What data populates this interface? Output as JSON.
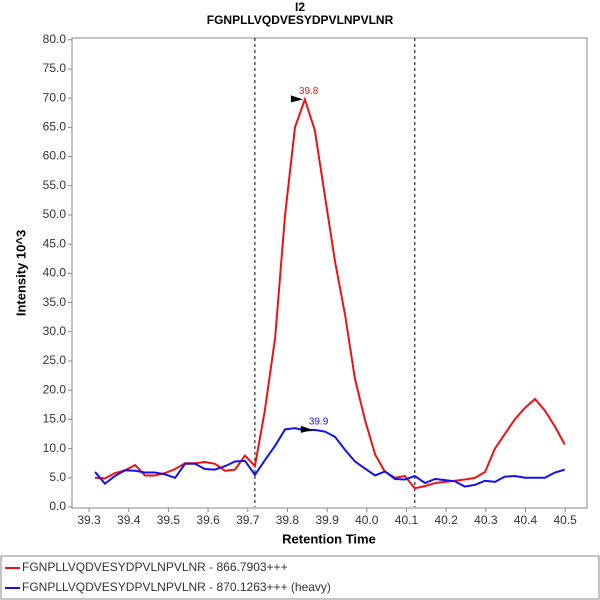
{
  "chart_data": {
    "type": "line",
    "title": "I2",
    "subtitle": "FGNPLLVQDVESYDPVLNPVLNR",
    "x_label": "Retention Time",
    "y_label": "Intensity 10^3",
    "x": [
      39.315,
      39.34,
      39.365,
      39.391,
      39.416,
      39.441,
      39.466,
      39.491,
      39.517,
      39.542,
      39.567,
      39.592,
      39.617,
      39.643,
      39.668,
      39.693,
      39.718,
      39.743,
      39.769,
      39.794,
      39.819,
      39.844,
      39.869,
      39.895,
      39.92,
      39.945,
      39.97,
      39.995,
      40.021,
      40.046,
      40.071,
      40.096,
      40.121,
      40.147,
      40.172,
      40.197,
      40.222,
      40.247,
      40.273,
      40.298,
      40.323,
      40.348,
      40.373,
      40.399,
      40.424,
      40.449,
      40.474,
      40.499
    ],
    "series": [
      {
        "name": "FGNPLLVQDVESYDPVLNPVLNR - 866.7903+++",
        "color": "#ee1111",
        "values": [
          5.0,
          4.9,
          5.8,
          6.3,
          7.2,
          5.4,
          5.4,
          5.8,
          6.5,
          7.5,
          7.5,
          7.7,
          7.4,
          6.2,
          6.4,
          8.8,
          7.0,
          16.5,
          29,
          50,
          65,
          69.8,
          64.5,
          53,
          42,
          33,
          22,
          15,
          9,
          6,
          5,
          5.3,
          3.2,
          3.6,
          4.1,
          4.3,
          4.5,
          4.7,
          5.0,
          6.0,
          10,
          12.5,
          15,
          17,
          18.5,
          16.5,
          13.8,
          10.7
        ]
      },
      {
        "name": "FGNPLLVQDVESYDPVLNPVLNR - 870.1263+++ (heavy)",
        "color": "#1111ee",
        "values": [
          6.0,
          4.0,
          5.3,
          6.3,
          6.2,
          5.9,
          5.9,
          5.6,
          5.0,
          7.4,
          7.4,
          6.5,
          6.4,
          7.0,
          7.8,
          7.9,
          5.5,
          8.0,
          10.5,
          13.3,
          13.5,
          13.1,
          13.2,
          12.9,
          12.0,
          9.8,
          7.8,
          6.6,
          5.4,
          6.1,
          4.8,
          4.7,
          5.3,
          4.1,
          4.8,
          4.6,
          4.4,
          3.5,
          3.8,
          4.5,
          4.3,
          5.2,
          5.3,
          5.0,
          5.0,
          5.0,
          5.9,
          6.4
        ]
      }
    ],
    "annotations": [
      {
        "series": 0,
        "index": 21,
        "value": 39.844,
        "label": "39.8"
      },
      {
        "series": 1,
        "index": 22,
        "value": 39.869,
        "label": "39.9"
      }
    ],
    "boundaries": [
      39.718,
      40.121
    ],
    "xlim": [
      39.257,
      40.555
    ],
    "ylim": [
      0,
      80.3
    ],
    "xticks": [
      39.3,
      39.4,
      39.5,
      39.6,
      39.7,
      39.8,
      39.9,
      {
        "value": 40,
        "label": "40.0"
      },
      40.1,
      40.2,
      40.3,
      40.4,
      40.5
    ],
    "yticks": [
      {
        "value": 0,
        "label": "0.0"
      },
      {
        "value": 5,
        "label": "5.0"
      },
      {
        "value": 10,
        "label": "10.0"
      },
      {
        "value": 15,
        "label": "15.0"
      },
      {
        "value": 20,
        "label": "20.0"
      },
      {
        "value": 25,
        "label": "25.0"
      },
      {
        "value": 30,
        "label": "30.0"
      },
      {
        "value": 35,
        "label": "35.0"
      },
      {
        "value": 40,
        "label": "40.0"
      },
      {
        "value": 45,
        "label": "45.0"
      },
      {
        "value": 50,
        "label": "50.0"
      },
      {
        "value": 55,
        "label": "55.0"
      },
      {
        "value": 60,
        "label": "60.0"
      },
      {
        "value": 65,
        "label": "65.0"
      },
      {
        "value": 70,
        "label": "70.0"
      },
      {
        "value": 75,
        "label": "75.0"
      },
      {
        "value": 80,
        "label": "80.0"
      }
    ],
    "grid": false
  }
}
